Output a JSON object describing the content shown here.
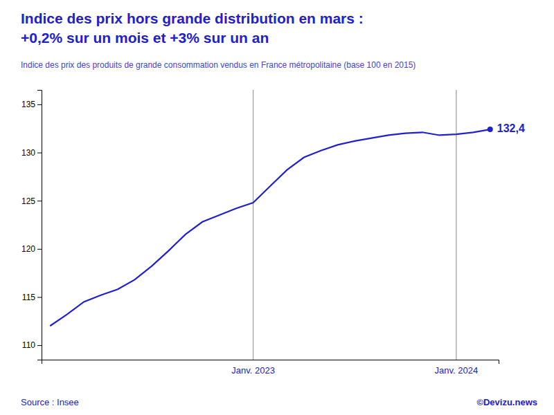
{
  "chart_data": {
    "type": "line",
    "title": [
      "Indice des prix hors grande distribution en mars :",
      "+0,2% sur un mois et +3% sur un an"
    ],
    "subtitle": "Indice des prix des produits de grande consommation vendus en France métropolitaine (base 100 en 2015)",
    "x": [
      0,
      1,
      2,
      3,
      4,
      5,
      6,
      7,
      8,
      9,
      10,
      11,
      12,
      13,
      14,
      15,
      16,
      17,
      18,
      19,
      20,
      21,
      22,
      23,
      24,
      25,
      26
    ],
    "xlim": [
      -0.5,
      26.5
    ],
    "ylim": [
      108.5,
      136.5
    ],
    "yticks": [
      110,
      115,
      120,
      125,
      130,
      135
    ],
    "grid": false,
    "tick_labels": "y",
    "series": [
      {
        "color": "#2020CC",
        "values": [
          112.0,
          113.2,
          114.5,
          115.2,
          115.8,
          116.8,
          118.2,
          119.8,
          121.5,
          122.8,
          123.5,
          124.2,
          124.8,
          126.5,
          128.2,
          129.5,
          130.2,
          130.8,
          131.2,
          131.5,
          131.8,
          132.0,
          132.1,
          131.8,
          131.9,
          132.1,
          132.4
        ]
      }
    ],
    "annotations": [
      {
        "type": "vline",
        "x": 12,
        "label": "Janv. 2023"
      },
      {
        "type": "vline",
        "x": 24,
        "label": "Janv. 2024"
      },
      {
        "type": "point",
        "x": 26,
        "y": 132.4,
        "label": "132,4",
        "marker": "circle"
      }
    ],
    "footer": [
      "Source : Insee",
      "©Devizu.news"
    ]
  }
}
